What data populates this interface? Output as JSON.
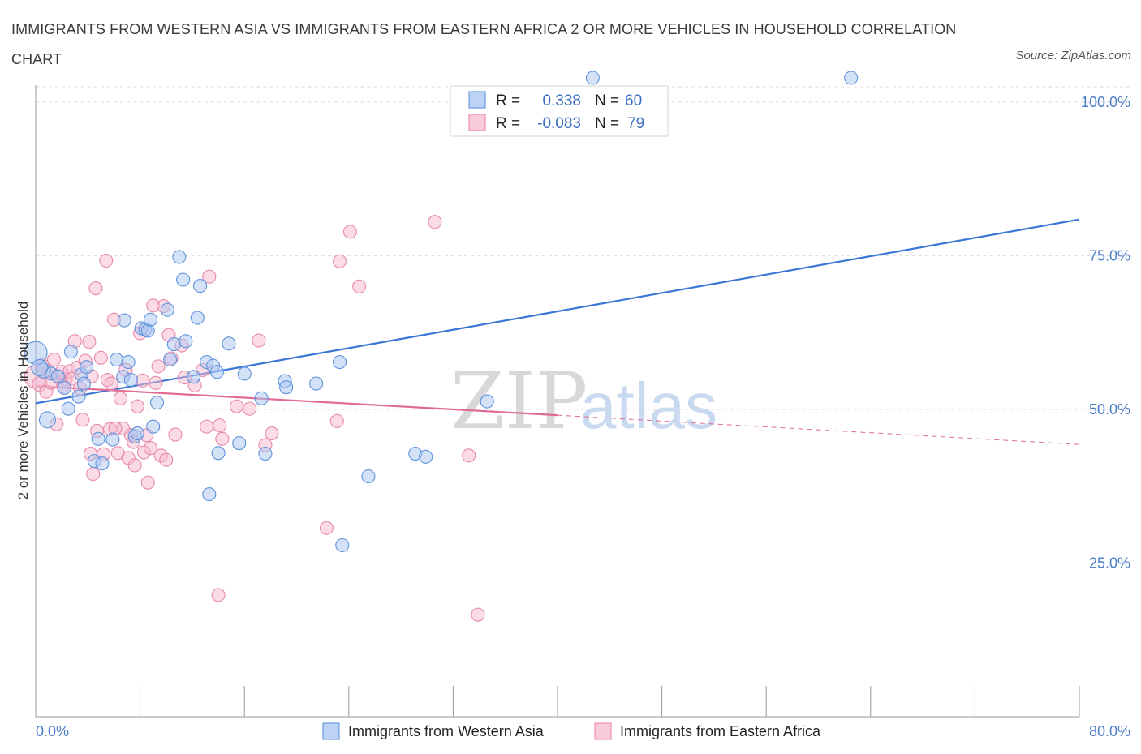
{
  "title": "IMMIGRANTS FROM WESTERN ASIA VS IMMIGRANTS FROM EASTERN AFRICA 2 OR MORE VEHICLES IN HOUSEHOLD CORRELATION CHART",
  "source": "Source: ZipAtlas.com",
  "watermark": {
    "zip": "ZIP",
    "atlas": "atlas"
  },
  "stats": [
    {
      "r_label": "R =",
      "r_value": "0.338",
      "n_label": "N =",
      "n_value": "60",
      "color": "#6b9be0"
    },
    {
      "r_label": "R =",
      "r_value": "-0.083",
      "n_label": "N =",
      "n_value": "79",
      "color": "#ef8fb0"
    }
  ],
  "colors": {
    "blue_fill": "#a9c6f2",
    "blue_stroke": "#5f92dc",
    "blue_line": "#3b76d6",
    "pink_fill": "#f6b8cd",
    "pink_stroke": "#e88aaa",
    "pink_line": "#e06a93",
    "grid": "#dcdcdc",
    "tick_text": "#4a7cc7"
  },
  "chart_data": {
    "type": "scatter",
    "title": "IMMIGRANTS FROM WESTERN ASIA VS IMMIGRANTS FROM EASTERN AFRICA 2 OR MORE VEHICLES IN HOUSEHOLD CORRELATION CHART",
    "xlabel": "",
    "ylabel": "2 or more Vehicles in Household",
    "xlim": [
      0,
      80
    ],
    "ylim": [
      0,
      105
    ],
    "x_tick_labels": [
      "0.0%",
      "80.0%"
    ],
    "y_ticks": [
      25,
      50,
      75,
      100
    ],
    "y_tick_labels": [
      "25.0%",
      "50.0%",
      "75.0%",
      "100.0%"
    ],
    "grid": true,
    "legend_position": "bottom-center",
    "series": [
      {
        "name": "Immigrants from Western Asia",
        "color": "#6b9be0",
        "trend": {
          "x_start": 0,
          "y_start": 51.0,
          "x_end": 80,
          "y_end": 80.9,
          "solid_until": 80
        },
        "points": [
          [
            0.0,
            59.2,
            14
          ],
          [
            0.9,
            48.3,
            10
          ],
          [
            0.6,
            56.3,
            9
          ],
          [
            1.2,
            55.8,
            8
          ],
          [
            1.7,
            55.4,
            8
          ],
          [
            2.2,
            53.5,
            8
          ],
          [
            2.5,
            50.1,
            8
          ],
          [
            2.7,
            59.4,
            8
          ],
          [
            3.3,
            52.1,
            8
          ],
          [
            3.5,
            55.7,
            8
          ],
          [
            3.7,
            54.2,
            8
          ],
          [
            3.9,
            56.9,
            8
          ],
          [
            4.5,
            41.6,
            8
          ],
          [
            4.8,
            45.2,
            8
          ],
          [
            5.1,
            41.2,
            8
          ],
          [
            5.9,
            45.1,
            8
          ],
          [
            6.2,
            58.1,
            8
          ],
          [
            6.7,
            55.3,
            8
          ],
          [
            6.8,
            64.5,
            8
          ],
          [
            7.1,
            57.7,
            8
          ],
          [
            7.3,
            54.8,
            8
          ],
          [
            7.6,
            45.6,
            8
          ],
          [
            7.8,
            46.1,
            8
          ],
          [
            8.1,
            63.2,
            8
          ],
          [
            8.4,
            63.0,
            8
          ],
          [
            8.6,
            62.8,
            8
          ],
          [
            8.8,
            64.6,
            8
          ],
          [
            9.0,
            47.2,
            8
          ],
          [
            9.3,
            51.1,
            8
          ],
          [
            10.1,
            66.2,
            8
          ],
          [
            10.3,
            58.1,
            8
          ],
          [
            10.6,
            60.6,
            8
          ],
          [
            11.0,
            74.8,
            8
          ],
          [
            11.3,
            71.1,
            8
          ],
          [
            11.5,
            61.1,
            8
          ],
          [
            12.1,
            55.3,
            8
          ],
          [
            12.4,
            64.9,
            8
          ],
          [
            12.6,
            70.1,
            8
          ],
          [
            13.1,
            57.7,
            8
          ],
          [
            13.3,
            36.2,
            8
          ],
          [
            13.6,
            57.1,
            8
          ],
          [
            13.9,
            56.1,
            8
          ],
          [
            14.0,
            42.9,
            8
          ],
          [
            14.8,
            60.7,
            8
          ],
          [
            15.6,
            44.5,
            8
          ],
          [
            16.0,
            55.8,
            8
          ],
          [
            17.3,
            51.8,
            8
          ],
          [
            17.6,
            42.8,
            8
          ],
          [
            19.1,
            54.6,
            8
          ],
          [
            19.2,
            53.6,
            8
          ],
          [
            21.5,
            54.2,
            8
          ],
          [
            23.3,
            57.7,
            8
          ],
          [
            23.5,
            27.9,
            8
          ],
          [
            25.5,
            39.1,
            8
          ],
          [
            29.1,
            42.8,
            8
          ],
          [
            29.9,
            42.3,
            8
          ],
          [
            34.6,
            51.3,
            8
          ],
          [
            42.7,
            105.2,
            8
          ],
          [
            62.5,
            105.2,
            8
          ],
          [
            0.3,
            56.8,
            10
          ]
        ]
      },
      {
        "name": "Immigrants from Eastern Africa",
        "color": "#ef8fb0",
        "trend": {
          "x_start": 0,
          "y_start": 53.8,
          "x_end": 80,
          "y_end": 44.3,
          "solid_until": 40
        },
        "points": [
          [
            0.0,
            55.3,
            14
          ],
          [
            0.3,
            54.1,
            9
          ],
          [
            0.5,
            57.2,
            8
          ],
          [
            0.8,
            52.9,
            8
          ],
          [
            1.0,
            56.2,
            8
          ],
          [
            1.2,
            54.3,
            8
          ],
          [
            1.4,
            58.1,
            8
          ],
          [
            1.6,
            47.6,
            8
          ],
          [
            1.8,
            55.2,
            8
          ],
          [
            2.0,
            56.1,
            8
          ],
          [
            2.3,
            54.9,
            8
          ],
          [
            2.6,
            56.2,
            8
          ],
          [
            2.8,
            55.0,
            8
          ],
          [
            3.0,
            61.1,
            8
          ],
          [
            3.2,
            56.8,
            8
          ],
          [
            3.4,
            53.4,
            8
          ],
          [
            3.6,
            48.3,
            8
          ],
          [
            3.8,
            57.9,
            8
          ],
          [
            4.1,
            61.0,
            8
          ],
          [
            4.2,
            42.8,
            8
          ],
          [
            4.3,
            55.4,
            8
          ],
          [
            4.4,
            39.5,
            8
          ],
          [
            4.6,
            69.7,
            8
          ],
          [
            4.7,
            46.5,
            8
          ],
          [
            5.0,
            58.4,
            8
          ],
          [
            5.2,
            42.7,
            8
          ],
          [
            5.4,
            74.2,
            8
          ],
          [
            5.5,
            54.8,
            8
          ],
          [
            5.7,
            46.8,
            8
          ],
          [
            5.8,
            54.2,
            8
          ],
          [
            6.0,
            64.6,
            8
          ],
          [
            6.3,
            42.9,
            8
          ],
          [
            6.5,
            51.8,
            8
          ],
          [
            6.7,
            46.9,
            8
          ],
          [
            6.9,
            56.4,
            8
          ],
          [
            7.1,
            42.1,
            8
          ],
          [
            7.3,
            45.8,
            8
          ],
          [
            7.5,
            44.7,
            8
          ],
          [
            7.6,
            40.9,
            8
          ],
          [
            7.8,
            50.5,
            8
          ],
          [
            8.0,
            62.4,
            8
          ],
          [
            8.2,
            54.7,
            8
          ],
          [
            8.3,
            43.0,
            8
          ],
          [
            8.5,
            45.8,
            8
          ],
          [
            8.6,
            38.1,
            8
          ],
          [
            8.8,
            43.7,
            8
          ],
          [
            9.0,
            66.9,
            8
          ],
          [
            9.2,
            54.3,
            8
          ],
          [
            9.4,
            57.0,
            8
          ],
          [
            9.6,
            42.5,
            8
          ],
          [
            9.8,
            66.8,
            8
          ],
          [
            10.0,
            41.8,
            8
          ],
          [
            10.2,
            62.1,
            8
          ],
          [
            10.4,
            58.3,
            8
          ],
          [
            10.7,
            45.9,
            8
          ],
          [
            11.2,
            60.4,
            8
          ],
          [
            11.4,
            55.2,
            8
          ],
          [
            12.2,
            53.9,
            8
          ],
          [
            12.8,
            56.4,
            8
          ],
          [
            13.1,
            47.2,
            8
          ],
          [
            13.3,
            71.6,
            8
          ],
          [
            14.1,
            47.4,
            8
          ],
          [
            14.3,
            45.2,
            8
          ],
          [
            14.0,
            19.8,
            8
          ],
          [
            15.4,
            50.5,
            8
          ],
          [
            16.4,
            50.1,
            8
          ],
          [
            17.1,
            61.2,
            8
          ],
          [
            17.6,
            44.2,
            8
          ],
          [
            18.1,
            46.1,
            8
          ],
          [
            22.3,
            30.7,
            8
          ],
          [
            23.1,
            48.1,
            8
          ],
          [
            23.3,
            74.1,
            8
          ],
          [
            24.1,
            78.9,
            8
          ],
          [
            24.8,
            70.0,
            8
          ],
          [
            30.6,
            80.5,
            8
          ],
          [
            33.2,
            42.5,
            8
          ],
          [
            33.9,
            16.6,
            8
          ],
          [
            6.1,
            46.9,
            8
          ],
          [
            2.1,
            53.8,
            8
          ]
        ]
      }
    ]
  },
  "legend": {
    "items": [
      {
        "label": "Immigrants from Western Asia",
        "color": "#6b9be0"
      },
      {
        "label": "Immigrants from Eastern Africa",
        "color": "#ef8fb0"
      }
    ]
  }
}
